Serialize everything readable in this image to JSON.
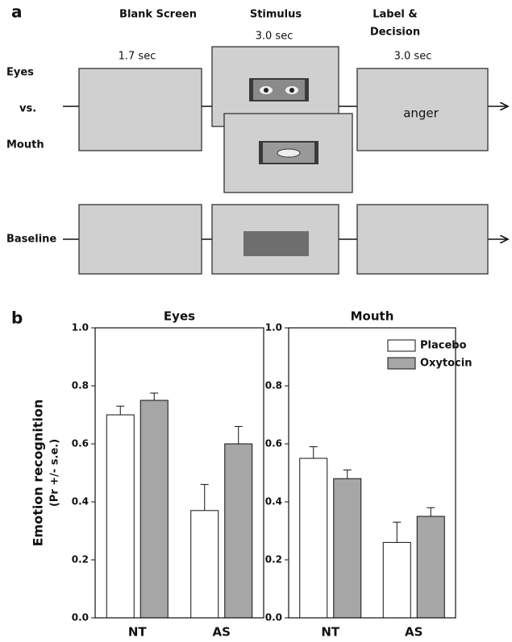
{
  "diagram": {
    "panel_label": "a",
    "phase_titles": [
      "Blank Screen",
      "Stimulus",
      "Label &",
      "Decision"
    ],
    "durations": [
      "1.7 sec",
      "3.0 sec",
      "3.0 sec"
    ],
    "row_labels": [
      "Eyes",
      "vs.",
      "Mouth",
      "Baseline"
    ],
    "response_word": "anger"
  },
  "panel_b_label": "b",
  "chart_data": [
    {
      "type": "bar",
      "title": "Eyes",
      "ylabel": [
        "Emotion recognition",
        "(Pr +/- s.e.)"
      ],
      "categories": [
        "NT",
        "AS"
      ],
      "series": [
        {
          "name": "Placebo",
          "color": "#ffffff",
          "values": [
            0.7,
            0.37
          ],
          "errors": [
            0.03,
            0.09
          ]
        },
        {
          "name": "Oxytocin",
          "color": "#a6a6a6",
          "values": [
            0.75,
            0.6
          ],
          "errors": [
            0.025,
            0.06
          ]
        }
      ],
      "ylim": [
        0,
        1
      ],
      "yticks": [
        {
          "value": 0,
          "label": "0.0"
        },
        0.2,
        0.4,
        0.6,
        0.8,
        {
          "value": 1,
          "label": "1.0"
        }
      ]
    },
    {
      "type": "bar",
      "title": "Mouth",
      "categories": [
        "NT",
        "AS"
      ],
      "series": [
        {
          "name": "Placebo",
          "color": "#ffffff",
          "values": [
            0.55,
            0.26
          ],
          "errors": [
            0.04,
            0.07
          ]
        },
        {
          "name": "Oxytocin",
          "color": "#a6a6a6",
          "values": [
            0.48,
            0.35
          ],
          "errors": [
            0.03,
            0.03
          ]
        }
      ],
      "ylim": [
        0,
        1
      ],
      "yticks": [
        {
          "value": 0,
          "label": "0.0"
        },
        0.2,
        0.4,
        0.6,
        0.8,
        {
          "value": 1,
          "label": "1.0"
        }
      ],
      "legend": "upper right"
    }
  ]
}
